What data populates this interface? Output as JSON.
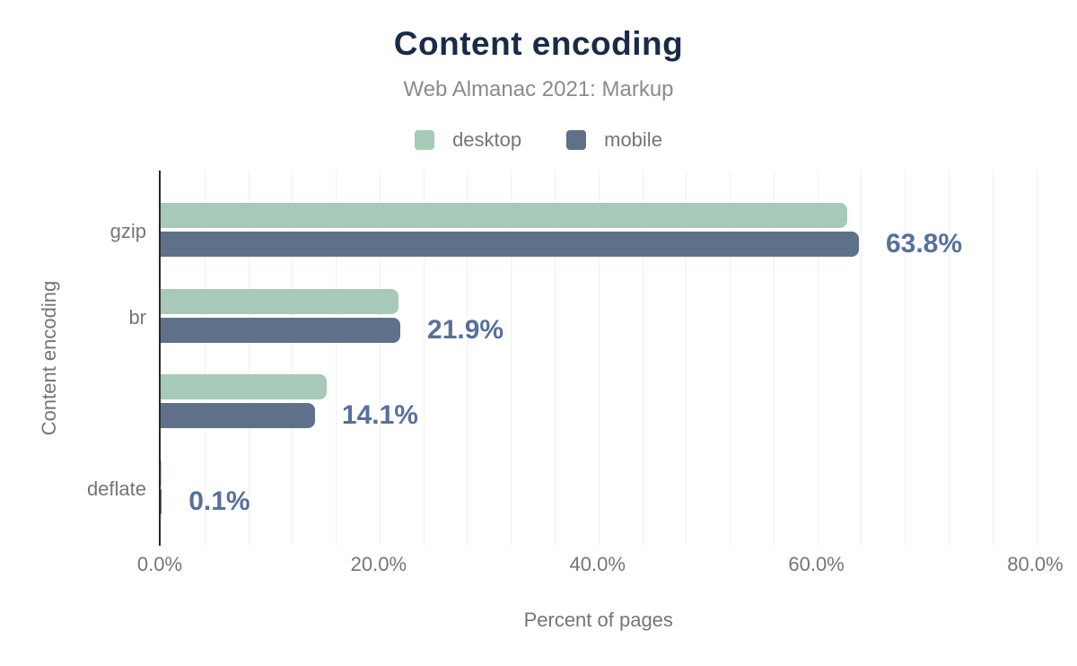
{
  "header": {
    "title": "Content encoding",
    "subtitle": "Web Almanac 2021: Markup"
  },
  "legend": [
    {
      "label": "desktop",
      "color": "#a7c9b8"
    },
    {
      "label": "mobile",
      "color": "#5e7189"
    }
  ],
  "chart_data": {
    "type": "bar",
    "orientation": "horizontal",
    "title": "Content encoding",
    "subtitle": "Web Almanac 2021: Markup",
    "categories": [
      "gzip",
      "br",
      "",
      "deflate"
    ],
    "series": [
      {
        "name": "desktop",
        "color": "#a7c9b8",
        "values": [
          62.7,
          21.7,
          15.2,
          0.1
        ]
      },
      {
        "name": "mobile",
        "color": "#5e7189",
        "values": [
          63.8,
          21.9,
          14.1,
          0.1
        ]
      }
    ],
    "data_labels": [
      "63.8%",
      "21.9%",
      "14.1%",
      "0.1%"
    ],
    "xlabel": "Percent of pages",
    "ylabel": "Content encoding",
    "x_ticks": [
      "0.0%",
      "20.0%",
      "40.0%",
      "60.0%",
      "80.0%"
    ],
    "x_tick_values": [
      0,
      20,
      40,
      60,
      80
    ],
    "xlim": [
      0,
      82.5
    ],
    "grid": {
      "minor_step": 4,
      "color": "#f0f0f0",
      "vertical": true
    },
    "legend_position": "top"
  },
  "colors": {
    "background": "#ffffff",
    "title": "#1a2b49",
    "subtitle_text": "#8b8b8b",
    "axis_text": "#757575",
    "data_label": "#56709b",
    "axis_line": "#292929",
    "gridline": "#f0f0f0",
    "desktop": "#a7c9b8",
    "mobile": "#5e7189"
  }
}
